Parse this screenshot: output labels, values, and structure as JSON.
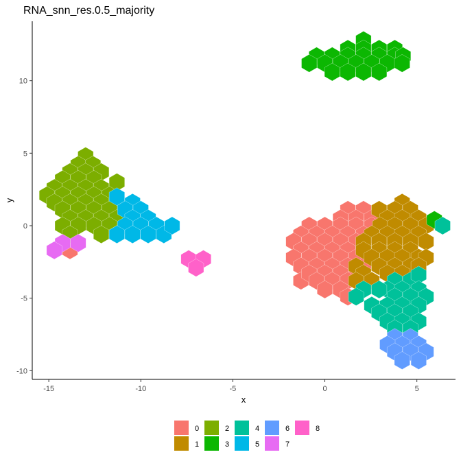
{
  "chart_data": {
    "type": "hexbin",
    "title": "RNA_snn_res.0.5_majority",
    "xlabel": "x",
    "ylabel": "y",
    "xlim": [
      -15.9,
      7.1
    ],
    "ylim": [
      -10.6,
      14.1
    ],
    "x_ticks": [
      -15,
      -10,
      -5,
      0,
      5
    ],
    "y_ticks": [
      -10,
      -5,
      0,
      5,
      10
    ],
    "grid": false,
    "legend_position": "bottom",
    "legend": [
      {
        "label": "0",
        "color": "#F8766D"
      },
      {
        "label": "1",
        "color": "#C08B00"
      },
      {
        "label": "2",
        "color": "#7CAE00"
      },
      {
        "label": "3",
        "color": "#0CB702"
      },
      {
        "label": "4",
        "color": "#00C19A"
      },
      {
        "label": "5",
        "color": "#00B8E7"
      },
      {
        "label": "6",
        "color": "#619CFF"
      },
      {
        "label": "7",
        "color": "#E76BF3"
      },
      {
        "label": "8",
        "color": "#FF61C9"
      }
    ],
    "hex_spacing": 0.84,
    "hexes": {
      "3": [
        [
          2.1,
          12.8
        ],
        [
          1.25,
          12.2
        ],
        [
          2.1,
          12.2
        ],
        [
          2.95,
          12.2
        ],
        [
          3.8,
          12.2
        ],
        [
          -0.45,
          11.7
        ],
        [
          0.4,
          11.7
        ],
        [
          1.25,
          11.7
        ],
        [
          2.1,
          11.7
        ],
        [
          2.95,
          11.7
        ],
        [
          3.8,
          11.7
        ],
        [
          4.25,
          11.7
        ],
        [
          -0.85,
          11.2
        ],
        [
          0,
          11.2
        ],
        [
          0.85,
          11.2
        ],
        [
          1.7,
          11.2
        ],
        [
          2.55,
          11.2
        ],
        [
          3.4,
          11.2
        ],
        [
          4.2,
          11.2
        ],
        [
          0.4,
          10.6
        ],
        [
          1.25,
          10.6
        ],
        [
          2.1,
          10.6
        ],
        [
          2.95,
          10.6
        ],
        [
          5.95,
          0.4
        ]
      ],
      "2": [
        [
          -13,
          4.8
        ],
        [
          -13.4,
          4.2
        ],
        [
          -12.6,
          4.2
        ],
        [
          -13.85,
          3.7
        ],
        [
          -13,
          3.7
        ],
        [
          -12.15,
          3.7
        ],
        [
          -14.25,
          3.2
        ],
        [
          -13.4,
          3.2
        ],
        [
          -12.55,
          3.2
        ],
        [
          -14.7,
          2.6
        ],
        [
          -13.85,
          2.6
        ],
        [
          -13,
          2.6
        ],
        [
          -12.15,
          2.6
        ],
        [
          -11.3,
          3.0
        ],
        [
          -15.1,
          2.1
        ],
        [
          -14.25,
          2.1
        ],
        [
          -13.4,
          2.1
        ],
        [
          -12.55,
          2.1
        ],
        [
          -11.7,
          2.1
        ],
        [
          -14.7,
          1.6
        ],
        [
          -13.85,
          1.6
        ],
        [
          -13,
          1.6
        ],
        [
          -12.15,
          1.6
        ],
        [
          -11.3,
          1.6
        ],
        [
          -14.25,
          1.1
        ],
        [
          -13.4,
          1.1
        ],
        [
          -12.55,
          1.1
        ],
        [
          -11.7,
          1.1
        ],
        [
          -13.85,
          0.5
        ],
        [
          -13,
          0.5
        ],
        [
          -12.15,
          0.5
        ],
        [
          -11.3,
          0.5
        ],
        [
          -14.25,
          0
        ],
        [
          -13.4,
          0
        ],
        [
          -12.55,
          0
        ],
        [
          -11.7,
          0
        ],
        [
          -12.15,
          -0.6
        ],
        [
          -11.3,
          -0.6
        ],
        [
          -13.85,
          -0.6
        ]
      ],
      "5": [
        [
          -11.3,
          2.0
        ],
        [
          -10.45,
          1.6
        ],
        [
          -10.85,
          1.1
        ],
        [
          -10,
          1.1
        ],
        [
          -10.45,
          0.5
        ],
        [
          -9.6,
          0.5
        ],
        [
          -9.15,
          0
        ],
        [
          -10,
          0
        ],
        [
          -10.85,
          0
        ],
        [
          -10.45,
          -0.6
        ],
        [
          -9.6,
          -0.6
        ],
        [
          -8.75,
          -0.6
        ],
        [
          -11.3,
          -0.6
        ],
        [
          -8.3,
          0
        ]
      ],
      "7": [
        [
          -14.25,
          -1.2
        ],
        [
          -13.4,
          -1.2
        ],
        [
          -14.7,
          -1.7
        ]
      ],
      "0": [
        [
          -13.85,
          -1.7
        ],
        [
          1.25,
          1.1
        ],
        [
          2.1,
          1.1
        ],
        [
          0.85,
          0.5
        ],
        [
          1.7,
          0.5
        ],
        [
          2.55,
          0.5
        ],
        [
          -0.85,
          0
        ],
        [
          0,
          0
        ],
        [
          0.85,
          0
        ],
        [
          1.7,
          0
        ],
        [
          2.55,
          0
        ],
        [
          -1.3,
          -0.6
        ],
        [
          -0.45,
          -0.6
        ],
        [
          0.4,
          -0.6
        ],
        [
          1.25,
          -0.6
        ],
        [
          2.1,
          -0.6
        ],
        [
          -1.7,
          -1.1
        ],
        [
          -0.85,
          -1.1
        ],
        [
          0,
          -1.1
        ],
        [
          0.85,
          -1.1
        ],
        [
          1.7,
          -1.1
        ],
        [
          -1.3,
          -1.7
        ],
        [
          -0.45,
          -1.7
        ],
        [
          0.4,
          -1.7
        ],
        [
          1.25,
          -1.7
        ],
        [
          -1.7,
          -2.2
        ],
        [
          -0.85,
          -2.2
        ],
        [
          0,
          -2.2
        ],
        [
          0.85,
          -2.2
        ],
        [
          1.7,
          -2.2
        ],
        [
          -1.3,
          -2.8
        ],
        [
          -0.45,
          -2.8
        ],
        [
          0.4,
          -2.8
        ],
        [
          1.25,
          -2.8
        ],
        [
          2.1,
          -2.8
        ],
        [
          -1.3,
          -3.8
        ],
        [
          -0.85,
          -3.3
        ],
        [
          0,
          -3.3
        ],
        [
          0.85,
          -3.3
        ],
        [
          1.7,
          -3.3
        ],
        [
          -0.45,
          -3.8
        ],
        [
          0.4,
          -3.8
        ],
        [
          1.25,
          -3.8
        ],
        [
          0,
          -4.4
        ],
        [
          0.85,
          -4.4
        ],
        [
          1.25,
          -4.9
        ]
      ],
      "1": [
        [
          4.2,
          1.6
        ],
        [
          2.95,
          1.1
        ],
        [
          3.8,
          1.1
        ],
        [
          4.65,
          1.1
        ],
        [
          3.4,
          0.5
        ],
        [
          4.2,
          0.5
        ],
        [
          5.1,
          0.5
        ],
        [
          3.0,
          0
        ],
        [
          3.8,
          0
        ],
        [
          4.65,
          0
        ],
        [
          5.5,
          0
        ],
        [
          2.55,
          -0.6
        ],
        [
          3.4,
          -0.6
        ],
        [
          4.2,
          -0.6
        ],
        [
          5.1,
          -0.6
        ],
        [
          2.1,
          -1.1
        ],
        [
          2.95,
          -1.1
        ],
        [
          3.8,
          -1.1
        ],
        [
          4.65,
          -1.1
        ],
        [
          5.5,
          -1.1
        ],
        [
          2.1,
          -1.7
        ],
        [
          2.95,
          -1.7
        ],
        [
          3.8,
          -1.7
        ],
        [
          4.65,
          -1.7
        ],
        [
          5.1,
          -2.2
        ],
        [
          2.55,
          -2.2
        ],
        [
          3.4,
          -2.2
        ],
        [
          4.2,
          -2.2
        ],
        [
          5.5,
          -2.2
        ],
        [
          1.7,
          -2.8
        ],
        [
          2.95,
          -2.8
        ],
        [
          3.8,
          -2.8
        ],
        [
          4.65,
          -2.8
        ],
        [
          2.1,
          -3.3
        ],
        [
          3.4,
          -3.3
        ],
        [
          4.2,
          -3.3
        ],
        [
          5.1,
          -2.8
        ],
        [
          1.7,
          -3.8
        ],
        [
          2.55,
          -3.8
        ]
      ],
      "4": [
        [
          6.4,
          0
        ],
        [
          3.8,
          -3.8
        ],
        [
          4.65,
          -3.8
        ],
        [
          5.1,
          -3.4
        ],
        [
          3.4,
          -4.4
        ],
        [
          4.2,
          -4.4
        ],
        [
          5.1,
          -4.4
        ],
        [
          2.1,
          -4.4
        ],
        [
          2.95,
          -4.4
        ],
        [
          1.7,
          -4.9
        ],
        [
          3.8,
          -4.9
        ],
        [
          4.65,
          -4.9
        ],
        [
          5.5,
          -4.9
        ],
        [
          2.55,
          -5.5
        ],
        [
          3.4,
          -5.5
        ],
        [
          4.2,
          -5.5
        ],
        [
          5.1,
          -5.5
        ],
        [
          2.95,
          -6
        ],
        [
          3.8,
          -6
        ],
        [
          4.65,
          -6
        ],
        [
          3.4,
          -6.6
        ],
        [
          4.2,
          -6.6
        ],
        [
          5.1,
          -6.6
        ],
        [
          3.8,
          -7.1
        ],
        [
          4.65,
          -7.1
        ]
      ],
      "6": [
        [
          3.8,
          -7.7
        ],
        [
          4.65,
          -7.7
        ],
        [
          4.2,
          -8.2
        ],
        [
          5.1,
          -8.2
        ],
        [
          3.4,
          -8.2
        ],
        [
          3.8,
          -8.7
        ],
        [
          4.65,
          -8.7
        ],
        [
          5.5,
          -8.7
        ],
        [
          4.2,
          -9.3
        ],
        [
          5.1,
          -9.3
        ]
      ],
      "8": [
        [
          -7.4,
          -2.3
        ],
        [
          -6.6,
          -2.3
        ],
        [
          -7.0,
          -2.9
        ]
      ]
    }
  }
}
